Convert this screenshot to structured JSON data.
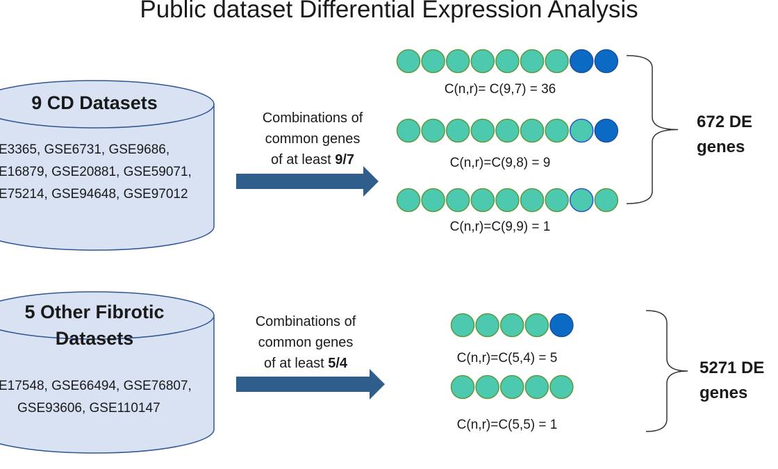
{
  "title": "Public dataset Differential Expression Analysis",
  "colors": {
    "cylinder_fill": "#d9e2f3",
    "cylinder_stroke": "#2f5597",
    "arrow": "#2f5d8c",
    "circle_teal": "#4dc9b0",
    "circle_teal_stroke": "#5a9a3a",
    "circle_blue": "#0b6bc4",
    "bracket": "#333333"
  },
  "groups": [
    {
      "db_title": [
        "9 CD Datasets"
      ],
      "db_list": [
        "E3365, GSE6731, GSE9686,",
        "E16879, GSE20881, GSE59071,",
        "E75214, GSE94648, GSE97012"
      ],
      "comb_lines": [
        "Combinations of",
        "common genes"
      ],
      "comb_prefix": "of at least ",
      "comb_ratio": "9/7",
      "rows": [
        {
          "label": "C(n,r)= C(9,7) = 36",
          "circles": [
            "teal",
            "teal",
            "teal",
            "teal",
            "teal",
            "teal",
            "teal",
            "blue",
            "blue"
          ]
        },
        {
          "label": "C(n,r)=C(9,8) = 9",
          "circles": [
            "teal",
            "teal",
            "teal",
            "teal",
            "teal",
            "teal",
            "teal",
            "teal-blue",
            "blue"
          ]
        },
        {
          "label": "C(n,r)=C(9,9) = 1",
          "circles": [
            "teal",
            "teal",
            "teal",
            "teal",
            "teal",
            "teal",
            "teal",
            "teal-blue",
            "teal"
          ]
        }
      ],
      "result_lines": [
        "672 DE",
        "genes"
      ]
    },
    {
      "db_title": [
        "5 Other Fibrotic",
        "Datasets"
      ],
      "db_list": [
        "E17548, GSE66494, GSE76807,",
        "GSE93606, GSE110147"
      ],
      "comb_lines": [
        "Combinations of",
        "common genes"
      ],
      "comb_prefix": "of at least ",
      "comb_ratio": "5/4",
      "rows": [
        {
          "label": "C(n,r)=C(5,4) = 5",
          "circles": [
            "teal",
            "teal",
            "teal",
            "teal",
            "blue"
          ]
        },
        {
          "label": "C(n,r)=C(5,5) = 1",
          "circles": [
            "teal",
            "teal",
            "teal",
            "teal",
            "teal"
          ]
        }
      ],
      "result_lines": [
        "5271 DE",
        "genes"
      ]
    }
  ]
}
